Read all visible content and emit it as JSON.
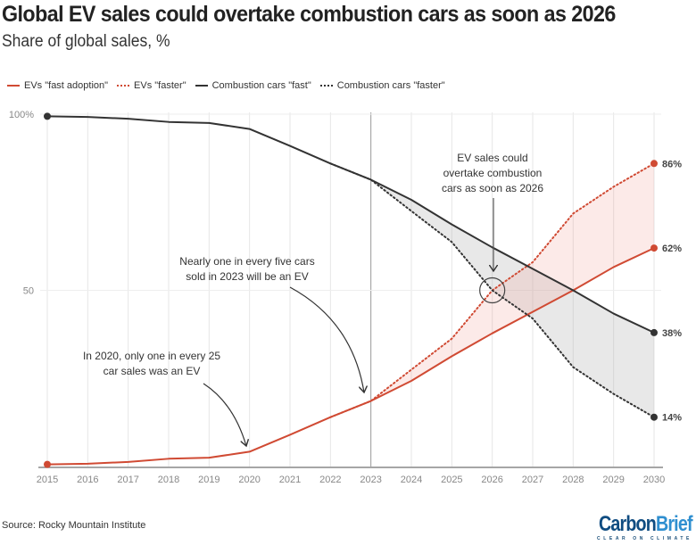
{
  "header": {
    "title": "Global EV sales could overtake combustion cars as soon as 2026",
    "subtitle": "Share of global sales, %"
  },
  "legend": [
    {
      "label": "EVs \"fast adoption\"",
      "color": "#d04a33",
      "style": "solid"
    },
    {
      "label": "EVs \"faster\"",
      "color": "#d04a33",
      "style": "dotted"
    },
    {
      "label": "Combustion cars \"fast\"",
      "color": "#333333",
      "style": "solid"
    },
    {
      "label": "Combustion cars \"faster\"",
      "color": "#333333",
      "style": "dotted"
    }
  ],
  "footer": {
    "source": "Source: Rocky Mountain Institute",
    "logo_part1": "Carbon",
    "logo_part2": "Brief",
    "logo_tagline": "CLEAR ON CLIMATE"
  },
  "chart_data": {
    "type": "line",
    "title": "Global EV sales could overtake combustion cars as soon as 2026",
    "subtitle": "Share of global sales, %",
    "xlabel": "",
    "ylabel": "",
    "x": [
      2015,
      2016,
      2017,
      2018,
      2019,
      2020,
      2021,
      2022,
      2023,
      2024,
      2025,
      2026,
      2027,
      2028,
      2029,
      2030
    ],
    "xlim": [
      2015,
      2030
    ],
    "ylim": [
      0,
      100
    ],
    "y_ticks": [
      {
        "value": 100,
        "label": "100%"
      },
      {
        "value": 50,
        "label": "50"
      }
    ],
    "x_tick_labels": [
      "2015",
      "2016",
      "2017",
      "2018",
      "2019",
      "2020",
      "2021",
      "2022",
      "2023",
      "2024",
      "2025",
      "2026",
      "2027",
      "2028",
      "2029",
      "2030"
    ],
    "grid": "vertical lines per year, horizontal at 50 and 100",
    "legend_position": "top-left",
    "reference_line_x": 2023,
    "series": [
      {
        "name": "EVs \"fast adoption\"",
        "color": "#d04a33",
        "style": "solid",
        "x": [
          2015,
          2016,
          2017,
          2018,
          2019,
          2020,
          2021,
          2022,
          2023,
          2024,
          2025,
          2026,
          2027,
          2028,
          2029,
          2030
        ],
        "values": [
          0.6,
          0.8,
          1.3,
          2.2,
          2.5,
          4.2,
          9,
          14,
          18.6,
          24.3,
          31.3,
          37.8,
          43.9,
          50,
          56.6,
          62
        ],
        "end_label": "62%"
      },
      {
        "name": "EVs \"faster\"",
        "color": "#d04a33",
        "style": "dotted",
        "x": [
          2022,
          2023,
          2024,
          2025,
          2026,
          2027,
          2028,
          2029,
          2030
        ],
        "values": [
          14,
          18.6,
          27.5,
          36.3,
          50,
          58,
          71.8,
          79.4,
          86
        ],
        "end_label": "86%"
      },
      {
        "name": "Combustion cars \"fast\"",
        "color": "#333333",
        "style": "solid",
        "x": [
          2015,
          2016,
          2017,
          2018,
          2019,
          2020,
          2021,
          2022,
          2023,
          2024,
          2025,
          2026,
          2027,
          2028,
          2029,
          2030
        ],
        "values": [
          99.4,
          99.2,
          98.7,
          97.8,
          97.5,
          95.8,
          91,
          86,
          81.4,
          75.7,
          68.7,
          62.2,
          56.1,
          50,
          43.4,
          38
        ],
        "end_label": "38%"
      },
      {
        "name": "Combustion cars \"faster\"",
        "color": "#333333",
        "style": "dotted",
        "x": [
          2022,
          2023,
          2024,
          2025,
          2026,
          2027,
          2028,
          2029,
          2030
        ],
        "values": [
          86,
          81.4,
          72.5,
          63.7,
          50,
          42,
          28.2,
          20.6,
          14
        ],
        "end_label": "14%"
      }
    ],
    "annotations": [
      {
        "text_lines": [
          "In 2020, only one in every 25",
          "car sales was an EV"
        ],
        "points_to": {
          "x": 2020,
          "y": 4.2
        }
      },
      {
        "text_lines": [
          "Nearly one in every five cars",
          "sold in 2023 will be an EV"
        ],
        "points_to": {
          "x": 2023,
          "y": 18.6
        }
      },
      {
        "text_lines": [
          "EV sales could",
          "overtake combustion",
          "cars as soon as 2026"
        ],
        "points_to": {
          "x": 2026,
          "y": 50
        }
      }
    ]
  }
}
